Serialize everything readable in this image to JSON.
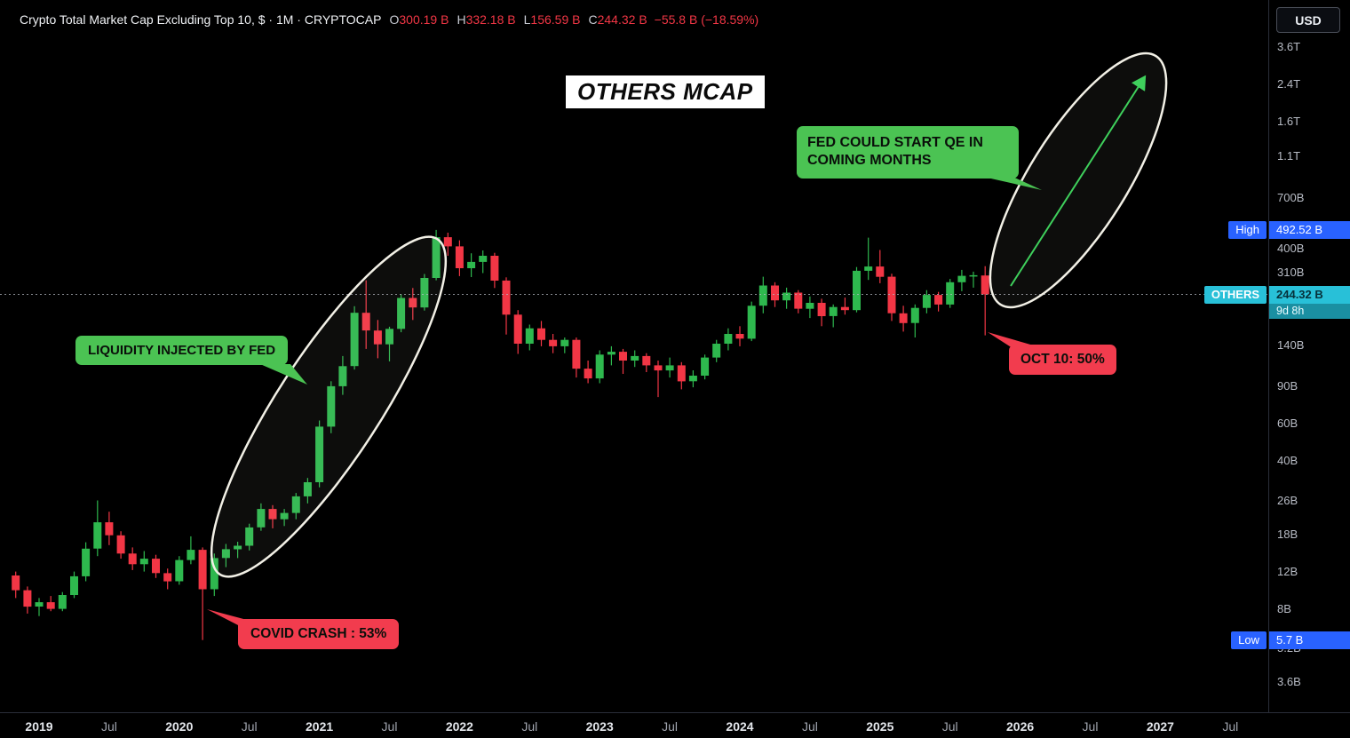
{
  "legend": {
    "title": "Crypto Total Market Cap Excluding Top 10, $ · 1M · CRYPTOCAP",
    "o": "O",
    "o_v": "300.19 B",
    "h": "H",
    "h_v": "332.18 B",
    "l": "L",
    "l_v": "156.59 B",
    "c": "C",
    "c_v": "244.32 B",
    "chg": "−55.8 B (−18.59%)"
  },
  "chart_title": "OTHERS MCAP",
  "callouts": {
    "liquidity": "LIQUIDITY INJECTED BY FED",
    "fedqe_line1": "FED COULD START QE IN",
    "fedqe_line2": "COMING MONTHS",
    "covid": "COVID CRASH : 53%",
    "oct10": "OCT 10: 50%"
  },
  "axis": {
    "currency": "USD",
    "high_label": "High",
    "high_value": "492.52 B",
    "others_label": "OTHERS",
    "others_value": "244.32 B",
    "countdown": "9d 8h",
    "low_label": "Low",
    "low_value": "5.7 B"
  },
  "colors": {
    "background": "#000000",
    "candle_up": "#2eb84e",
    "candle_down": "#f23645",
    "badge_blue": "#2962ff",
    "badge_cyan": "#28c0d8",
    "badge_cyan_dark": "#1a8fa2",
    "callout_green": "#4bc353",
    "callout_red": "#f23c4e",
    "ellipse_stroke": "#f2f0e6",
    "projection_arrow": "#3fd05c",
    "axis_text": "#b8bcc5",
    "panel_border": "#2a2e39"
  },
  "chart_data": {
    "type": "candlestick",
    "title": "OTHERS MCAP",
    "symbol": "CRYPTOCAP:OTHERS",
    "timeframe": "1M",
    "units": "billions USD",
    "log_scale": true,
    "ylim_billions": [
      2.6,
      6000
    ],
    "high_marker": 492.52,
    "low_marker": 5.7,
    "current": {
      "price": 244.32,
      "countdown": "9d 8h"
    },
    "ohlc_current": {
      "o": 300.19,
      "h": 332.18,
      "l": 156.59,
      "c": 244.32,
      "change_b": -55.8,
      "change_pct": -18.59
    },
    "y_ticks": [
      {
        "label": "3.6T",
        "v": 3600
      },
      {
        "label": "2.4T",
        "v": 2400
      },
      {
        "label": "1.6T",
        "v": 1600
      },
      {
        "label": "1.1T",
        "v": 1100
      },
      {
        "label": "700B",
        "v": 700
      },
      {
        "label": "400B",
        "v": 400
      },
      {
        "label": "310B",
        "v": 310
      },
      {
        "label": "140B",
        "v": 140
      },
      {
        "label": "90B",
        "v": 90
      },
      {
        "label": "60B",
        "v": 60
      },
      {
        "label": "40B",
        "v": 40
      },
      {
        "label": "26B",
        "v": 26
      },
      {
        "label": "18B",
        "v": 18
      },
      {
        "label": "12B",
        "v": 12
      },
      {
        "label": "8B",
        "v": 8
      },
      {
        "label": "5.2B",
        "v": 5.2
      },
      {
        "label": "3.6B",
        "v": 3.6
      }
    ],
    "x_ticks": [
      {
        "label": "2019",
        "i": 2,
        "major": true
      },
      {
        "label": "Jul",
        "i": 8,
        "major": false
      },
      {
        "label": "2020",
        "i": 14,
        "major": true
      },
      {
        "label": "Jul",
        "i": 20,
        "major": false
      },
      {
        "label": "2021",
        "i": 26,
        "major": true
      },
      {
        "label": "Jul",
        "i": 32,
        "major": false
      },
      {
        "label": "2022",
        "i": 38,
        "major": true
      },
      {
        "label": "Jul",
        "i": 44,
        "major": false
      },
      {
        "label": "2023",
        "i": 50,
        "major": true
      },
      {
        "label": "Jul",
        "i": 56,
        "major": false
      },
      {
        "label": "2024",
        "i": 62,
        "major": true
      },
      {
        "label": "Jul",
        "i": 68,
        "major": false
      },
      {
        "label": "2025",
        "i": 74,
        "major": true
      },
      {
        "label": "Jul",
        "i": 80,
        "major": false
      },
      {
        "label": "2026",
        "i": 86,
        "major": true
      },
      {
        "label": "Jul",
        "i": 92,
        "major": false
      },
      {
        "label": "2027",
        "i": 98,
        "major": true
      },
      {
        "label": "Jul",
        "i": 104,
        "major": false
      }
    ],
    "candles": [
      [
        "2018-11",
        11.5,
        12.0,
        9.0,
        9.8
      ],
      [
        "2018-12",
        9.8,
        10.2,
        7.6,
        8.2
      ],
      [
        "2019-01",
        8.2,
        9.0,
        7.4,
        8.6
      ],
      [
        "2019-02",
        8.6,
        9.2,
        7.8,
        8.0
      ],
      [
        "2019-03",
        8.0,
        9.6,
        7.8,
        9.3
      ],
      [
        "2019-04",
        9.3,
        12.0,
        9.0,
        11.4
      ],
      [
        "2019-05",
        11.4,
        16.5,
        10.8,
        15.4
      ],
      [
        "2019-06",
        15.4,
        26.0,
        14.2,
        20.5
      ],
      [
        "2019-07",
        20.5,
        23.0,
        16.0,
        17.8
      ],
      [
        "2019-08",
        17.8,
        18.6,
        13.8,
        14.6
      ],
      [
        "2019-09",
        14.6,
        15.6,
        12.2,
        13.0
      ],
      [
        "2019-10",
        13.0,
        15.0,
        12.0,
        13.8
      ],
      [
        "2019-11",
        13.8,
        14.4,
        11.2,
        11.8
      ],
      [
        "2019-12",
        11.8,
        12.4,
        9.9,
        10.8
      ],
      [
        "2020-01",
        10.8,
        14.2,
        10.4,
        13.6
      ],
      [
        "2020-02",
        13.6,
        17.6,
        13.0,
        15.2
      ],
      [
        "2020-03",
        15.2,
        15.6,
        5.7,
        9.9
      ],
      [
        "2020-04",
        9.9,
        14.6,
        9.2,
        13.9
      ],
      [
        "2020-05",
        13.9,
        16.2,
        12.6,
        15.3
      ],
      [
        "2020-06",
        15.3,
        16.6,
        13.9,
        15.9
      ],
      [
        "2020-07",
        15.9,
        20.2,
        15.1,
        19.4
      ],
      [
        "2020-08",
        19.4,
        25.2,
        18.7,
        23.7
      ],
      [
        "2020-09",
        23.7,
        24.7,
        19.2,
        21.2
      ],
      [
        "2020-10",
        21.2,
        23.7,
        19.7,
        22.7
      ],
      [
        "2020-11",
        22.7,
        28.2,
        21.2,
        27.2
      ],
      [
        "2020-12",
        27.2,
        33.2,
        25.2,
        31.7
      ],
      [
        "2021-01",
        31.7,
        62,
        30,
        58
      ],
      [
        "2021-02",
        58,
        95,
        54,
        90
      ],
      [
        "2021-03",
        90,
        125,
        82,
        112
      ],
      [
        "2021-04",
        112,
        215,
        108,
        200
      ],
      [
        "2021-05",
        200,
        285,
        135,
        165
      ],
      [
        "2021-06",
        165,
        185,
        122,
        142
      ],
      [
        "2021-07",
        142,
        172,
        118,
        168
      ],
      [
        "2021-08",
        168,
        245,
        162,
        235
      ],
      [
        "2021-09",
        235,
        262,
        185,
        212
      ],
      [
        "2021-10",
        212,
        305,
        205,
        292
      ],
      [
        "2021-11",
        292,
        492.52,
        285,
        455
      ],
      [
        "2021-12",
        455,
        478,
        372,
        412
      ],
      [
        "2022-01",
        412,
        440,
        298,
        325
      ],
      [
        "2022-02",
        325,
        382,
        295,
        348
      ],
      [
        "2022-03",
        348,
        394,
        308,
        372
      ],
      [
        "2022-04",
        372,
        384,
        262,
        284
      ],
      [
        "2022-05",
        284,
        294,
        158,
        196
      ],
      [
        "2022-06",
        196,
        206,
        128,
        143
      ],
      [
        "2022-07",
        143,
        176,
        133,
        169
      ],
      [
        "2022-08",
        169,
        183,
        139,
        149
      ],
      [
        "2022-09",
        149,
        159,
        129,
        139
      ],
      [
        "2022-10",
        139,
        153,
        129,
        149
      ],
      [
        "2022-11",
        149,
        153,
        99,
        109
      ],
      [
        "2022-12",
        109,
        119,
        93,
        98
      ],
      [
        "2023-01",
        98,
        133,
        93,
        127
      ],
      [
        "2023-02",
        127,
        139,
        113,
        131
      ],
      [
        "2023-03",
        131,
        135,
        103,
        119
      ],
      [
        "2023-04",
        119,
        133,
        111,
        125
      ],
      [
        "2023-05",
        125,
        129,
        105,
        113
      ],
      [
        "2023-06",
        113,
        119,
        80,
        107
      ],
      [
        "2023-07",
        107,
        123,
        99,
        113
      ],
      [
        "2023-08",
        113,
        117,
        87,
        95
      ],
      [
        "2023-09",
        95,
        107,
        89,
        101
      ],
      [
        "2023-10",
        101,
        127,
        97,
        123
      ],
      [
        "2023-11",
        123,
        149,
        117,
        143
      ],
      [
        "2023-12",
        143,
        169,
        133,
        159
      ],
      [
        "2024-01",
        159,
        173,
        139,
        151
      ],
      [
        "2024-02",
        151,
        226,
        147,
        216
      ],
      [
        "2024-03",
        216,
        296,
        199,
        269
      ],
      [
        "2024-04",
        269,
        279,
        213,
        229
      ],
      [
        "2024-05",
        229,
        263,
        209,
        249
      ],
      [
        "2024-06",
        249,
        256,
        199,
        209
      ],
      [
        "2024-07",
        209,
        239,
        189,
        223
      ],
      [
        "2024-08",
        223,
        233,
        173,
        193
      ],
      [
        "2024-09",
        193,
        219,
        171,
        213
      ],
      [
        "2024-10",
        213,
        236,
        196,
        206
      ],
      [
        "2024-11",
        206,
        329,
        201,
        316
      ],
      [
        "2024-12",
        316,
        453,
        286,
        331
      ],
      [
        "2025-01",
        331,
        396,
        276,
        296
      ],
      [
        "2025-02",
        296,
        306,
        183,
        199
      ],
      [
        "2025-03",
        199,
        216,
        163,
        179
      ],
      [
        "2025-04",
        179,
        219,
        153,
        211
      ],
      [
        "2025-05",
        211,
        256,
        199,
        243
      ],
      [
        "2025-06",
        243,
        251,
        203,
        219
      ],
      [
        "2025-07",
        219,
        289,
        211,
        279
      ],
      [
        "2025-08",
        279,
        319,
        253,
        299
      ],
      [
        "2025-09",
        299,
        313,
        263,
        301
      ],
      [
        "2025-10",
        300.19,
        332.18,
        156.59,
        244.32
      ]
    ]
  }
}
